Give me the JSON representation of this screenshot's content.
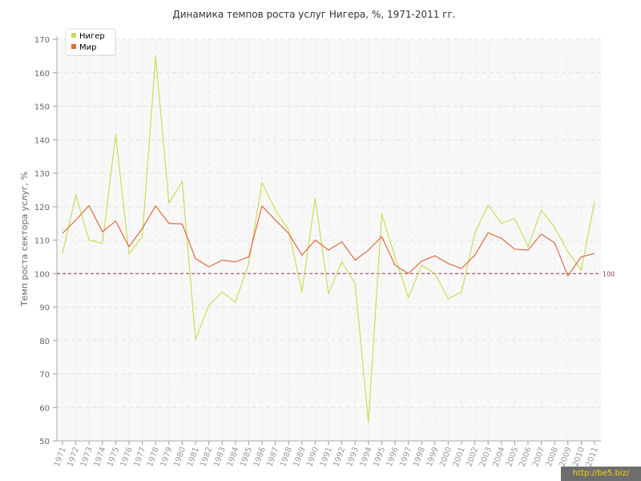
{
  "chart_data": {
    "type": "line",
    "title": "Динамика темпов роста услуг Нигера, %, 1971-2011 гг.",
    "ylabel": "Темп роста сектора услуг, %",
    "xlabel": "",
    "ylim": [
      50,
      170
    ],
    "yticks": [
      50,
      60,
      70,
      80,
      90,
      100,
      110,
      120,
      130,
      140,
      150,
      160,
      170
    ],
    "grid": true,
    "legend_position": "top-left",
    "categories": [
      "1971",
      "1972",
      "1973",
      "1974",
      "1975",
      "1976",
      "1977",
      "1978",
      "1979",
      "1980",
      "1981",
      "1982",
      "1983",
      "1984",
      "1985",
      "1986",
      "1987",
      "1988",
      "1989",
      "1990",
      "1991",
      "1992",
      "1993",
      "1994",
      "1995",
      "1996",
      "1997",
      "1998",
      "1999",
      "2000",
      "2001",
      "2002",
      "2003",
      "2004",
      "2005",
      "2006",
      "2007",
      "2008",
      "2009",
      "2010",
      "2011"
    ],
    "series": [
      {
        "name": "Нигер",
        "color": "#c5df5a",
        "values": [
          106.0,
          123.5,
          110.0,
          109.0,
          141.5,
          105.8,
          111.0,
          165.0,
          121.0,
          127.5,
          80.3,
          90.5,
          94.5,
          91.5,
          103.0,
          127.2,
          119.0,
          113.0,
          94.5,
          122.5,
          94.0,
          103.5,
          97.0,
          55.5,
          117.8,
          105.0,
          92.8,
          102.5,
          100.0,
          92.5,
          94.5,
          112.0,
          120.5,
          115.0,
          116.5,
          108.0,
          119.0,
          113.8,
          106.5,
          101.0,
          121.5
        ]
      },
      {
        "name": "Мир",
        "color": "#e06a3f",
        "values": [
          112.0,
          116.0,
          120.3,
          112.5,
          115.7,
          108.0,
          113.5,
          120.2,
          115.0,
          114.8,
          104.5,
          102.0,
          104.0,
          103.5,
          105.0,
          120.2,
          116.0,
          112.0,
          105.5,
          110.0,
          107.0,
          109.5,
          104.0,
          107.0,
          111.0,
          102.5,
          100.0,
          103.7,
          105.3,
          103.0,
          101.5,
          105.5,
          112.2,
          110.5,
          107.3,
          107.0,
          111.8,
          109.2,
          99.3,
          105.0,
          106.0
        ]
      }
    ],
    "reference_line": {
      "value": 100,
      "label": "100",
      "color": "#8b3a52"
    }
  },
  "watermark": "http://be5.biz/"
}
